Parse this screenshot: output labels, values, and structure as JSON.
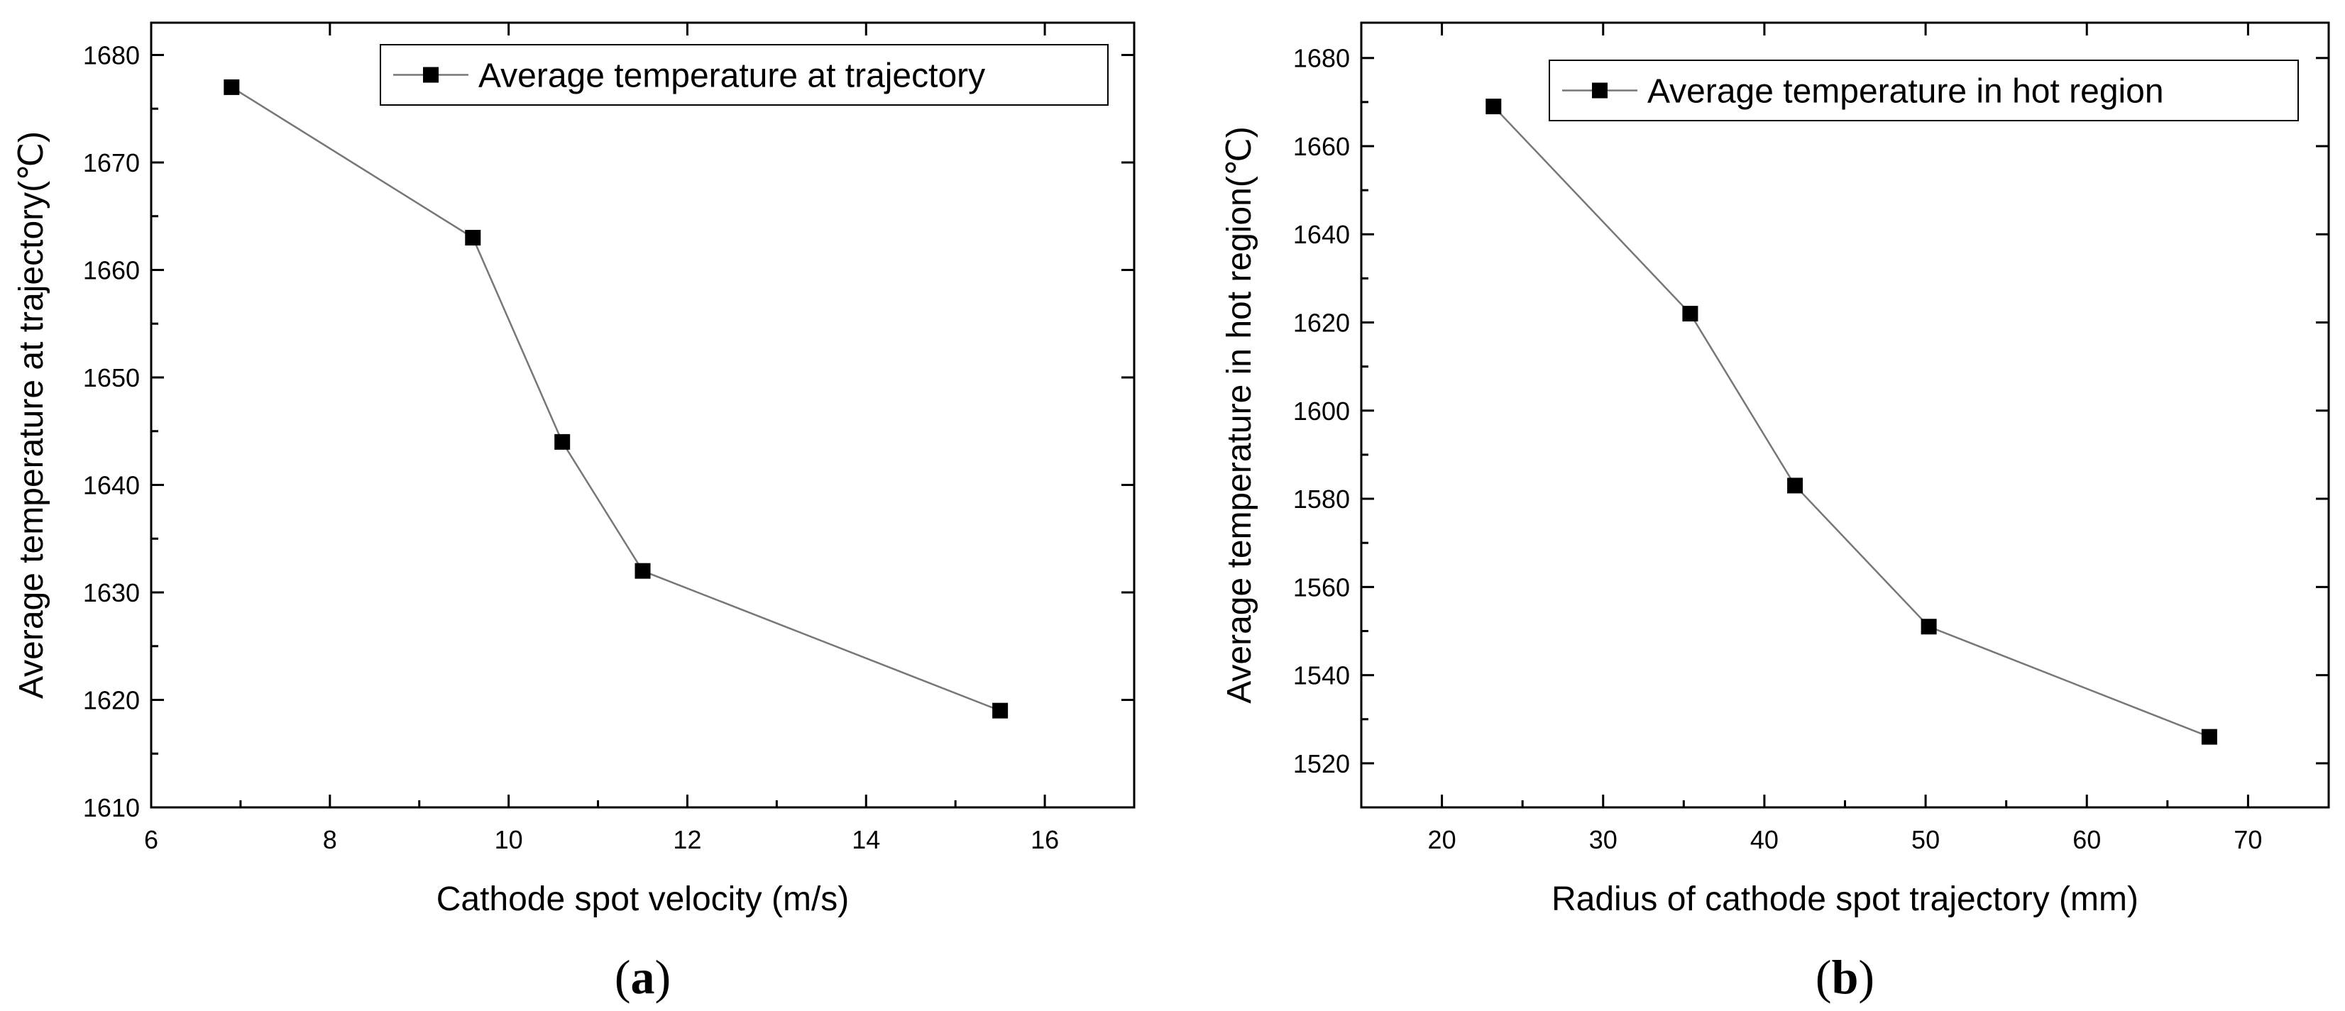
{
  "chart_data": [
    {
      "type": "line",
      "panel_label": "(a)",
      "x": [
        6.9,
        9.6,
        10.6,
        11.5,
        15.5
      ],
      "series": [
        {
          "name": "Average temperature at trajectory",
          "values": [
            1677,
            1663,
            1644,
            1632,
            1619
          ],
          "marker": "square",
          "color": "#000000",
          "line_color": "#777777"
        }
      ],
      "xlabel": "Cathode spot velocity (m/s)",
      "ylabel": "Average temperature at trajectory(℃)",
      "xlim": [
        6,
        17
      ],
      "ylim": [
        1610,
        1683
      ],
      "xticks": [
        6,
        8,
        10,
        12,
        14,
        16
      ],
      "yticks": [
        1610,
        1620,
        1630,
        1640,
        1650,
        1660,
        1670,
        1680
      ],
      "legend_position": "top-right",
      "grid": false
    },
    {
      "type": "line",
      "panel_label": "(b)",
      "x": [
        23.2,
        35.4,
        41.9,
        50.2,
        67.6
      ],
      "series": [
        {
          "name": "Average temperature in hot region",
          "values": [
            1669,
            1622,
            1583,
            1551,
            1526
          ],
          "marker": "square",
          "color": "#000000",
          "line_color": "#777777"
        }
      ],
      "xlabel": "Radius of cathode spot trajectory (mm)",
      "ylabel": "Average temperature in hot region(℃)",
      "xlim": [
        15,
        75
      ],
      "ylim": [
        1510,
        1688
      ],
      "xticks": [
        20,
        30,
        40,
        50,
        60,
        70
      ],
      "yticks": [
        1520,
        1540,
        1560,
        1580,
        1600,
        1620,
        1640,
        1660,
        1680
      ],
      "legend_position": "top-right",
      "grid": false
    }
  ]
}
